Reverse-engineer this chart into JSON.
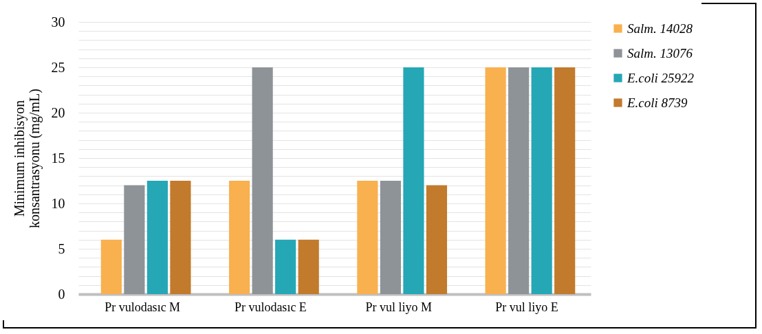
{
  "chart_data": {
    "type": "bar",
    "ylabel": "Minimum inhibisyon konsantrasyonu (mg/mL)",
    "categories": [
      "Pr vulodasıc M",
      "Pr vulodasıc E",
      "Pr vul liyo M",
      "Pr vul liyo E"
    ],
    "series": [
      {
        "name": "Salm. 14028",
        "color": "#f9b04f",
        "values": [
          6,
          12.5,
          12.5,
          25
        ]
      },
      {
        "name": "Salm. 13076",
        "color": "#8e9398",
        "values": [
          12,
          25,
          12.5,
          25
        ]
      },
      {
        "name": "E.coli 25922",
        "color": "#25a7b6",
        "values": [
          12.5,
          6,
          25,
          25
        ]
      },
      {
        "name": "E.coli 8739",
        "color": "#c27a2c",
        "values": [
          12.5,
          6,
          12,
          25
        ]
      }
    ],
    "ylim": [
      0,
      30
    ],
    "yticks": [
      0,
      {
        "value": 1,
        "label": null
      },
      {
        "value": 2,
        "label": null
      },
      {
        "value": 3,
        "label": null
      },
      {
        "value": 4,
        "label": null
      },
      5,
      {
        "value": 6,
        "label": null
      },
      {
        "value": 7,
        "label": null
      },
      {
        "value": 8,
        "label": null
      },
      {
        "value": 9,
        "label": null
      },
      10,
      {
        "value": 11,
        "label": null
      },
      {
        "value": 12,
        "label": null
      },
      {
        "value": 13,
        "label": null
      },
      {
        "value": 14,
        "label": null
      },
      15,
      {
        "value": 16,
        "label": null
      },
      {
        "value": 17,
        "label": null
      },
      {
        "value": 18,
        "label": null
      },
      {
        "value": 19,
        "label": null
      },
      20,
      {
        "value": 21,
        "label": null
      },
      {
        "value": 22,
        "label": null
      },
      {
        "value": 23,
        "label": null
      },
      {
        "value": 24,
        "label": null
      },
      25,
      {
        "value": 26,
        "label": null
      },
      {
        "value": 27,
        "label": null
      },
      {
        "value": 28,
        "label": null
      },
      {
        "value": 29,
        "label": null
      },
      30
    ],
    "grid": true,
    "legend": "right"
  }
}
